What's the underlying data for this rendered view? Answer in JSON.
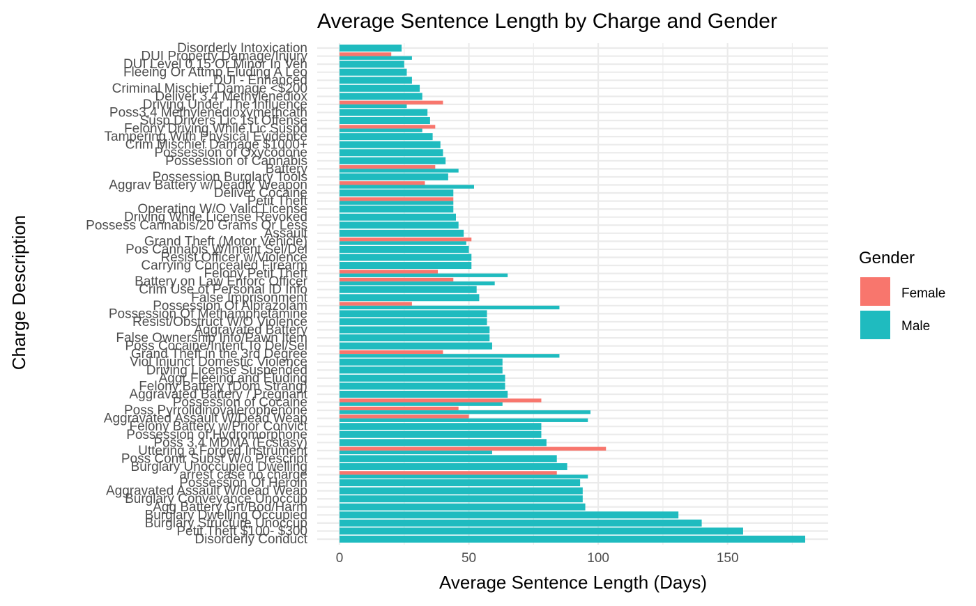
{
  "colors": {
    "female": "#F8766D",
    "male": "#1FBBBF",
    "grid": "#EBEBEB",
    "text": "#4D4D4D",
    "title": "#000000"
  },
  "chart_data": {
    "type": "bar",
    "orientation": "horizontal",
    "title": "Average Sentence Length by Charge and Gender",
    "xlabel": "Average Sentence Length (Days)",
    "ylabel": "Charge Description",
    "xlim": [
      0,
      190
    ],
    "xticks": [
      0,
      50,
      100,
      150
    ],
    "legend": {
      "title": "Gender",
      "position": "right",
      "entries": [
        "Female",
        "Male"
      ]
    },
    "grid": true,
    "categories": [
      "Disorderly Intoxication",
      "DUI Property Damage/Injury",
      "DUI Level 0.15 Or Minor In Veh",
      "Fleeing Or Attmp Eluding A Leo",
      "DUI - Enhanced",
      "Criminal Mischief Damage <$200",
      "Deliver 3,4 Methylenediox",
      "Driving Under The Influence",
      "Poss3,4 Methylenedioxymethcath",
      "Susp Drivers Lic 1st Offense",
      "Felony Driving While Lic Suspd",
      "Tampering With Physical Evidence",
      "Crim Mischief Damage $1000+",
      "Possession of Oxycodone",
      "Possession of Cannabis",
      "Battery",
      "Possession Burglary Tools",
      "Aggrav Battery w/Deadly Weapon",
      "Deliver Cocaine",
      "Petit Theft",
      "Operating W/O Valid License",
      "Driving While License Revoked",
      "Possess Cannabis/20 Grams Or Less",
      "Assault",
      "Grand Theft (Motor Vehicle)",
      "Pos Cannabis W/Intent Sel/Del",
      "Resist Officer w/Violence",
      "Carrying Concealed Firearm",
      "Felony Petit Theft",
      "Battery on Law Enforc Officer",
      "Crim Use of Personal ID Info",
      "False Imprisonment",
      "Possession Of Alprazolam",
      "Possession Of Methamphetamine",
      "Resist/Obstruct W/O Violence",
      "Aggravated Battery",
      "False Ownership Info/Pawn Item",
      "Poss Cocaine/Intent To Del/Sel",
      "Grand Theft in the 3rd Degree",
      "Viol Injunct Domestic Violence",
      "Driving License Suspended",
      "Aggr Fleeing and Eluding",
      "Felony Battery (Dom Strang)",
      "Aggravated Battery / Pregnant",
      "Possession of Cocaine",
      "Poss Pyrrolidinovalerophenone",
      "Aggravated Assault W/Dead Weap",
      "Felony Battery w/Prior Convict",
      "Possession of Hydromorphone",
      "Poss 3,4 MDMA (Ecstasy)",
      "Uttering a Forged Instrument",
      "Poss Contr Subst W/o Prescript",
      "Burglary Unoccupied Dwelling",
      "arrest case no charge",
      "Possession Of Heroin",
      "Aggravated Assault W/dead Weap",
      "Burglary Conveyance Unoccup",
      "Agg Battery Grt/Bod/Harm",
      "Burglary Dwelling Occupied",
      "Burglary Structure Unoccup",
      "Petit Theft $100- $300",
      "Disorderly Conduct"
    ],
    "series": [
      {
        "name": "Female",
        "values": [
          null,
          20,
          null,
          null,
          null,
          null,
          null,
          40,
          null,
          null,
          37,
          null,
          null,
          null,
          null,
          37,
          null,
          33,
          null,
          44,
          null,
          null,
          null,
          null,
          51,
          null,
          null,
          null,
          38,
          44,
          null,
          null,
          28,
          null,
          null,
          null,
          null,
          null,
          40,
          null,
          null,
          null,
          null,
          null,
          78,
          46,
          50,
          null,
          null,
          null,
          103,
          null,
          null,
          84,
          null,
          null,
          null,
          null,
          null,
          null,
          null,
          null
        ]
      },
      {
        "name": "Male",
        "values": [
          24,
          28,
          25,
          26,
          28,
          31,
          32,
          26,
          34,
          35,
          32,
          36,
          39,
          40,
          41,
          46,
          42,
          52,
          44,
          44,
          44,
          45,
          46,
          48,
          49,
          50,
          51,
          51,
          65,
          60,
          53,
          54,
          85,
          57,
          57,
          58,
          58,
          59,
          85,
          63,
          63,
          64,
          64,
          65,
          63,
          97,
          96,
          78,
          78,
          80,
          59,
          84,
          88,
          96,
          93,
          94,
          94,
          95,
          131,
          140,
          156,
          180
        ]
      }
    ]
  }
}
